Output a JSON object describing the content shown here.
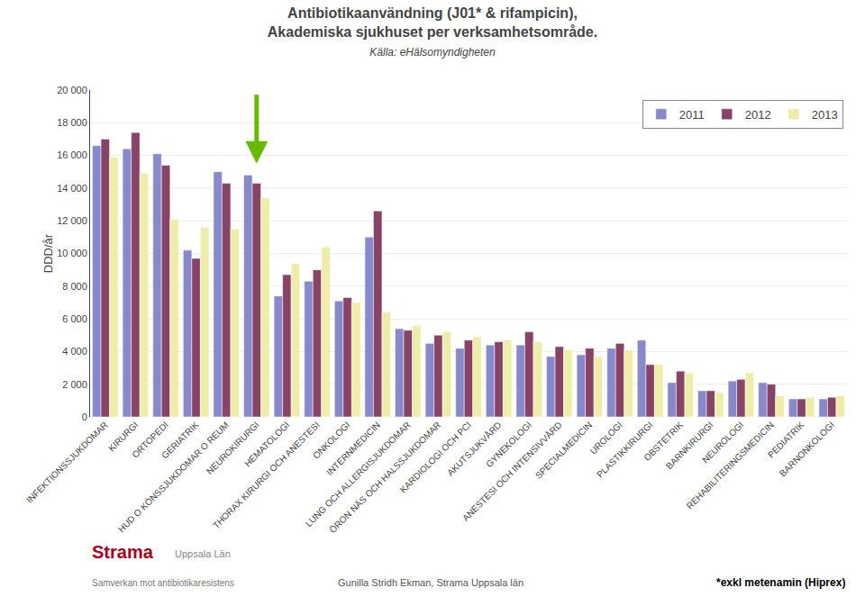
{
  "chart_data": {
    "type": "bar",
    "title": "Antibiotikaanvändning (J01* & rifampicin),\nAkademiska sjukhuset per verksamhetsområde.",
    "subtitle": "Källa: eHälsomyndigheten",
    "ylabel": "DDD/år",
    "categories": [
      "INFEKTIONSSJUKDOMAR",
      "KIRURGI",
      "ORTOPEDI",
      "GERIATRIK",
      "HUD O KÖNSSJUKDOMAR O REUM",
      "NEUROKIRURGI",
      "HEMATOLOGI",
      "THORAX KIRURGI OCH ANESTESI",
      "ONKOLOGI",
      "INTERNMEDICIN",
      "LUNG OCH ALLERGISJUKDOMAR",
      "ÖRON NÄS OCH HALSSJUKDOMAR",
      "KARDIOLOGI OCH PCI",
      "AKUTSJUKVÅRD",
      "GYNEKOLOGI",
      "ANESTESI OCH INTENSIVVÅRD",
      "SPECIALMEDICIN",
      "UROLOGI",
      "PLASTIKKIRURGI",
      "OBSTETRIK",
      "BARNKIRURGI",
      "NEUROLOGI",
      "REHABILITERINGSMEDICIN",
      "PEDIATRIK",
      "BARNONKOLOGI"
    ],
    "series": [
      {
        "name": "2011",
        "color": "#8888CC",
        "values": [
          16600,
          16400,
          16100,
          10200,
          15000,
          14800,
          7400,
          8300,
          7100,
          11000,
          5400,
          4500,
          4200,
          4400,
          4400,
          3700,
          3800,
          4200,
          4700,
          2100,
          1600,
          2200,
          2100,
          1100,
          1100
        ]
      },
      {
        "name": "2012",
        "color": "#884466",
        "values": [
          17000,
          17400,
          15400,
          9700,
          14300,
          14300,
          8700,
          9000,
          7300,
          12600,
          5300,
          5000,
          4700,
          4600,
          5200,
          4300,
          4200,
          4500,
          3200,
          2800,
          1600,
          2300,
          2000,
          1100,
          1200
        ]
      },
      {
        "name": "2013",
        "color": "#EEEEAA",
        "values": [
          15900,
          14900,
          12100,
          11600,
          11500,
          13400,
          9400,
          10400,
          7000,
          6400,
          5600,
          5200,
          4900,
          4700,
          4600,
          4100,
          3700,
          4100,
          3200,
          2700,
          1500,
          2700,
          1300,
          1200,
          1300
        ]
      }
    ],
    "ylim": [
      0,
      20000
    ],
    "yticks": [
      0,
      {
        "value": 2000,
        "label": "2 000"
      },
      {
        "value": 4000,
        "label": "4 000"
      },
      {
        "value": 6000,
        "label": "6 000"
      },
      {
        "value": 8000,
        "label": "8 000"
      },
      {
        "value": 10000,
        "label": "10 000"
      },
      {
        "value": 12000,
        "label": "12 000"
      },
      {
        "value": 14000,
        "label": "14 000"
      },
      {
        "value": 16000,
        "label": "16 000"
      },
      {
        "value": 18000,
        "label": "18 000"
      },
      {
        "value": 20000,
        "label": "20 000"
      }
    ],
    "grid": true,
    "legend": "upper right",
    "annotations": [
      {
        "x": "NEUROKIRURGI",
        "y": 15500,
        "y_from": 19800,
        "color": "#66BB00"
      },
      {
        "text": "Strama",
        "color": "#AA0020"
      },
      {
        "text": "Uppsala Län"
      },
      {
        "text": "Samverkan mot antibiotikaresistens"
      },
      {
        "text": "Gunilla Stridh Ekman, Strama Uppsala län"
      },
      {
        "text": "*exkl metenamin (Hiprex)"
      }
    ]
  }
}
